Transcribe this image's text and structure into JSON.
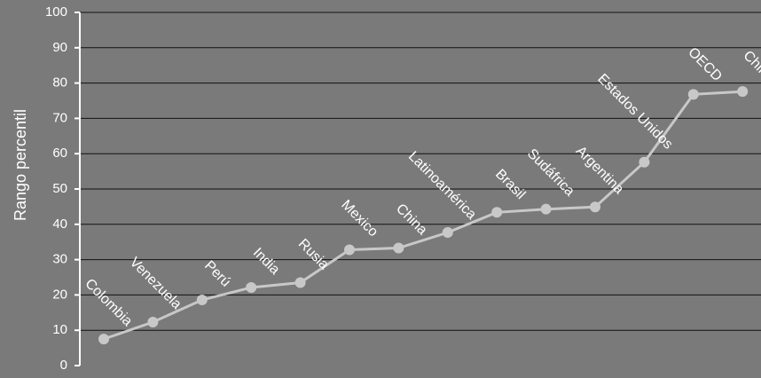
{
  "chart_data": {
    "type": "line",
    "title": "",
    "xlabel": "",
    "ylabel": "Rango percentil",
    "ylim": [
      0,
      100
    ],
    "yticks": [
      0,
      10,
      20,
      30,
      40,
      50,
      60,
      70,
      80,
      90,
      100
    ],
    "grid": true,
    "legend": "none",
    "categories": [
      "Colombia",
      "Venezuela",
      "Perú",
      "India",
      "Rusia",
      "Mexico",
      "China",
      "Latinoamérica",
      "Brasil",
      "Sudáfrica",
      "Argentina",
      "Estados Unidos",
      "OECD",
      "Chile"
    ],
    "series": [
      {
        "values": [
          7.5,
          12.3,
          18.6,
          22.1,
          23.5,
          32.8,
          33.3,
          37.7,
          43.4,
          44.3,
          44.9,
          57.6,
          76.8,
          77.6
        ]
      }
    ],
    "colors": {
      "background": "#7a7a7a",
      "line": "#c8c8c8",
      "marker": "#c8c8c8",
      "grid": "#111111",
      "text": "#ffffff"
    }
  }
}
